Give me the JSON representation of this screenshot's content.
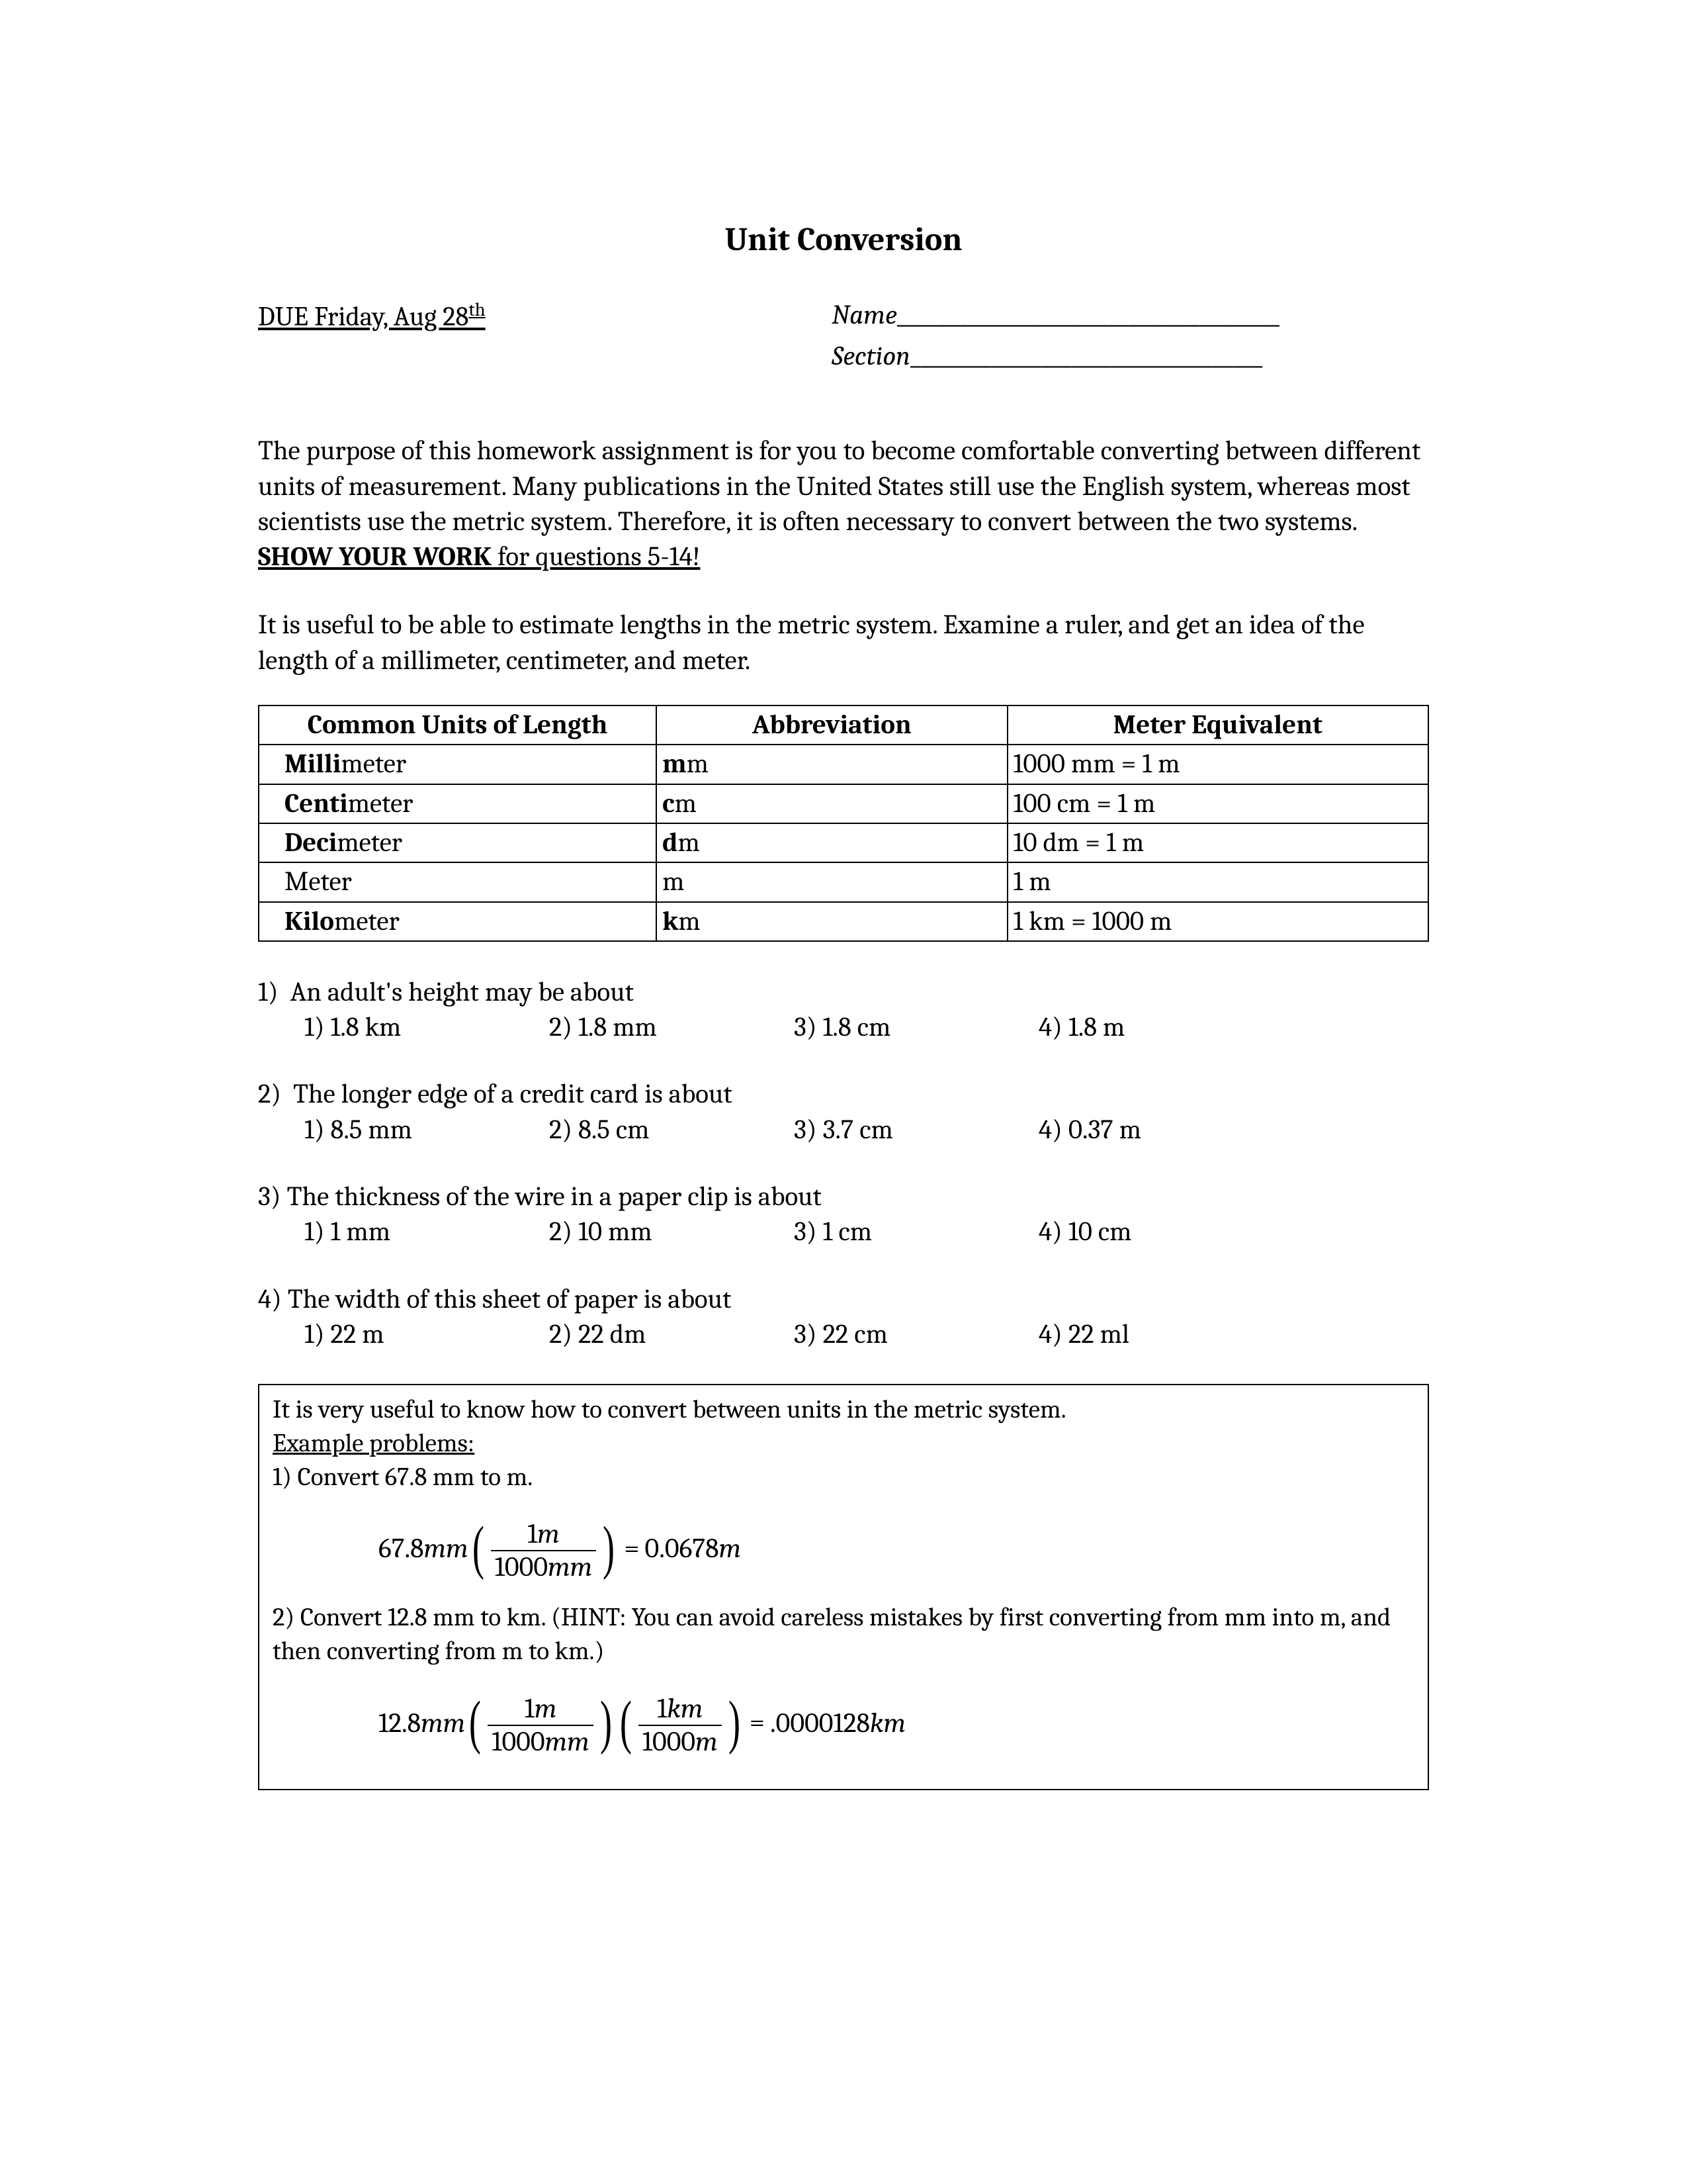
{
  "title": "Unit Conversion",
  "due_prefix": "DUE Friday, Aug 28",
  "due_suffix": "th",
  "name_label": "Name",
  "name_blank": "______________________________________",
  "section_label": "Section",
  "section_blank": "___________________________________",
  "intro_1": "The purpose of this homework assignment is for you to become comfortable converting between different units of measurement.  Many publications in the United States still use the English system, whereas most scientists use the metric system.  Therefore, it is often necessary to convert between the two systems.  ",
  "show_work": "SHOW YOUR WORK",
  "intro_2": " for questions 5-14!",
  "para2": "It is useful to be able to estimate lengths in the metric system.  Examine a ruler, and get an idea of the length of a millimeter, centimeter, and meter.",
  "table": {
    "headers": [
      "Common Units of Length",
      "Abbreviation",
      "Meter Equivalent"
    ],
    "rows": [
      {
        "unit_bold": "Milli",
        "unit_rest": "meter",
        "abbr_bold": "m",
        "abbr_rest": "m",
        "equiv": "1000 mm = 1 m"
      },
      {
        "unit_bold": "Centi",
        "unit_rest": "meter",
        "abbr_bold": "c",
        "abbr_rest": "m",
        "equiv": "100 cm = 1 m"
      },
      {
        "unit_bold": "Deci",
        "unit_rest": "meter",
        "abbr_bold": "d",
        "abbr_rest": "m",
        "equiv": "10 dm = 1 m"
      },
      {
        "unit_bold": "",
        "unit_rest": "Meter",
        "abbr_bold": "",
        "abbr_rest": "m",
        "equiv": "1 m"
      },
      {
        "unit_bold": "Kilo",
        "unit_rest": "meter",
        "abbr_bold": "k",
        "abbr_rest": "m",
        "equiv": "1 km = 1000 m"
      }
    ]
  },
  "questions": [
    {
      "num": "1)",
      "text": "An adult's height may be about",
      "opts": [
        "1) 1.8 km",
        "2) 1.8 mm",
        "3) 1.8 cm",
        "4) 1.8 m"
      ],
      "indent": true
    },
    {
      "num": "2)",
      "text": "The longer edge of a credit card is about",
      "opts": [
        "1) 8.5 mm",
        "2) 8.5 cm",
        "3) 3.7 cm",
        "4) 0.37 m"
      ],
      "indent": true
    },
    {
      "num": "3)",
      "text": "The thickness of the wire in a paper clip is about",
      "opts": [
        "1) 1 mm",
        "2) 10 mm",
        "3) 1 cm",
        "4) 10 cm"
      ],
      "indent": false
    },
    {
      "num": "4)",
      "text": "The width of this sheet of paper is about",
      "opts": [
        "1) 22 m",
        "2) 22 dm",
        "3) 22 cm",
        "4) 22 ml"
      ],
      "indent": false
    }
  ],
  "example": {
    "intro": "It is very useful to know how to convert between units in the metric system.",
    "label": "Example problems:",
    "p1": "1) Convert 67.8 mm to m.",
    "f1": {
      "lead": "67.8",
      "lead_unit": "mm",
      "num": "1",
      "num_unit": "m",
      "den": "1000",
      "den_unit": "mm",
      "result": "0.0678",
      "result_unit": "m"
    },
    "p2": "2) Convert 12.8 mm to km. (HINT: You can avoid careless mistakes by first converting from mm into m, and then converting from m to km.)",
    "f2": {
      "lead": "12.8",
      "lead_unit": "mm",
      "num1": "1",
      "num1_unit": "m",
      "den1": "1000",
      "den1_unit": "mm",
      "num2": "1",
      "num2_unit": "km",
      "den2": "1000",
      "den2_unit": "m",
      "result": ".0000128",
      "result_unit": "km"
    }
  }
}
